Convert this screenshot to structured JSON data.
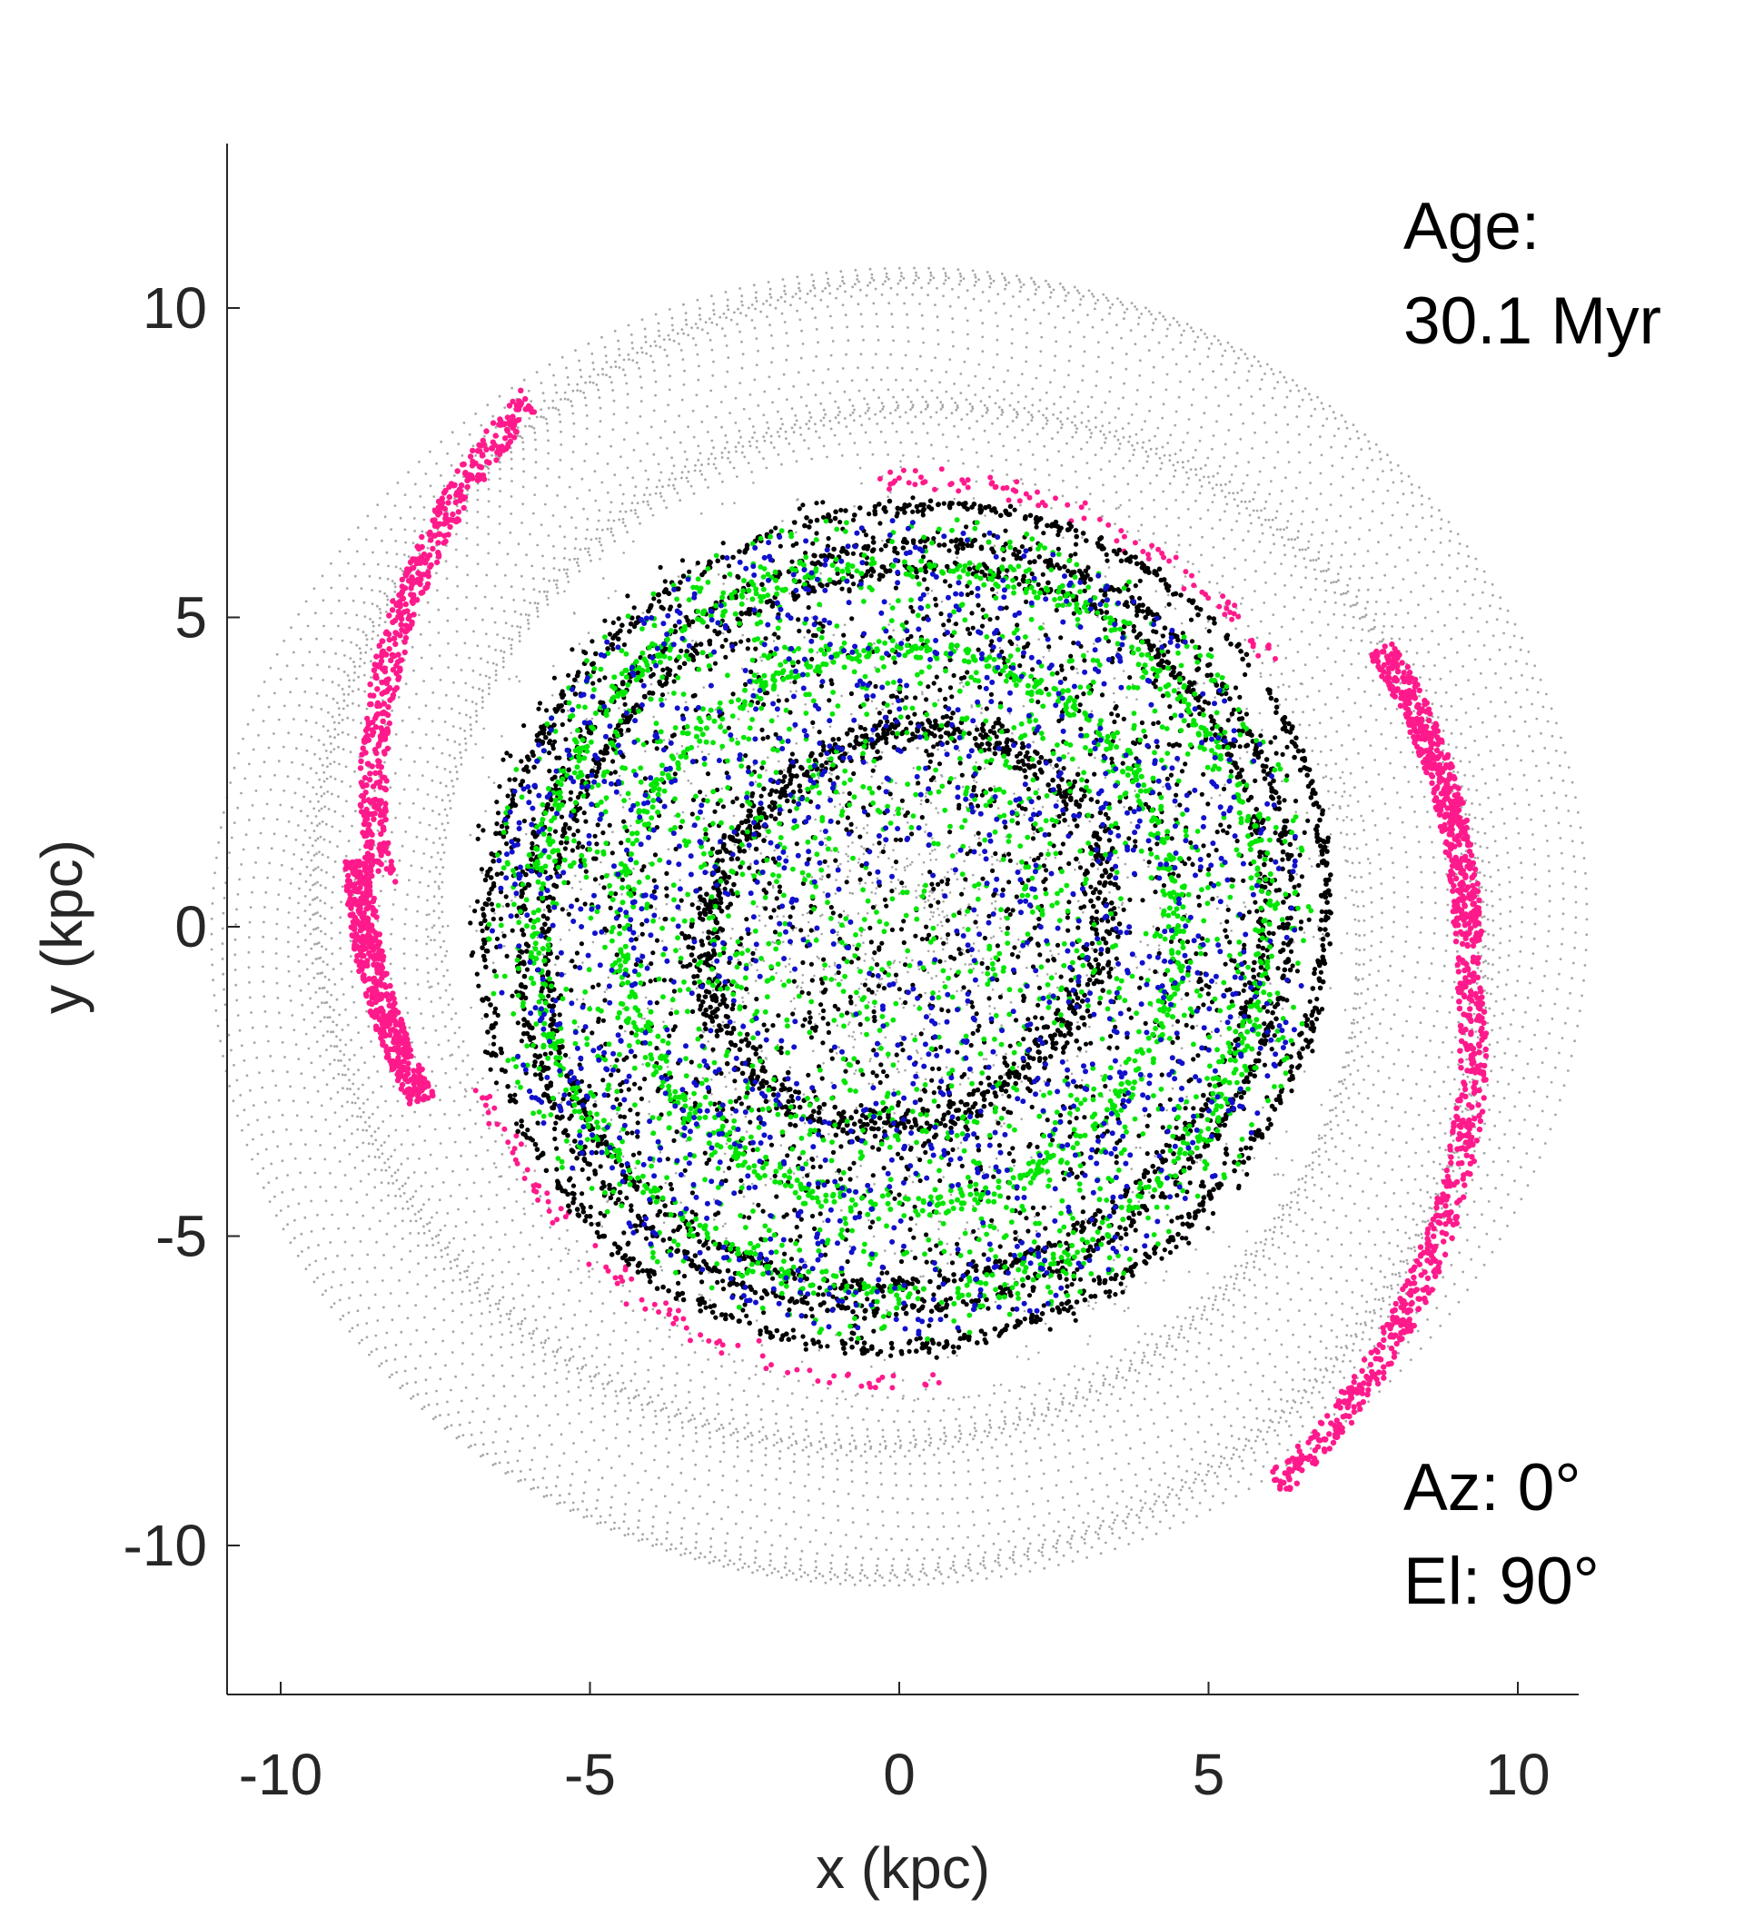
{
  "chart_data": {
    "type": "scatter",
    "title": "",
    "xlabel": "x (kpc)",
    "ylabel": "y (kpc)",
    "xlim": [
      -11,
      11
    ],
    "ylim": [
      -12.5,
      12.7
    ],
    "xticks": [
      -10,
      -5,
      0,
      5,
      10
    ],
    "yticks": [
      -10,
      -5,
      0,
      5,
      10
    ],
    "xtick_labels": [
      "-10",
      "-5",
      "0",
      "5",
      "10"
    ],
    "ytick_labels": [
      "-10",
      "-5",
      "0",
      "5",
      "10"
    ],
    "grid": false,
    "legend": "none",
    "annotations": {
      "age_label": "Age:",
      "age_value": "30.1 Myr",
      "azimuth": "Az: 0°",
      "elevation": "El: 90°"
    },
    "colors": {
      "gas_background": "#a6a6a6",
      "black_population": "#000000",
      "green_population": "#00e600",
      "blue_population": "#1010cc",
      "magenta_population": "#ff1a8c",
      "axis": "#262626"
    },
    "series": [
      {
        "color": "#a6a6a6",
        "description_key": "gray",
        "pattern": "rings",
        "r_range": [
          7.5,
          10.9
        ],
        "note_values": "dense concentric rings of small gray points filling the outer disk"
      },
      {
        "color": "#ff1a8c",
        "description_key": "magenta",
        "pattern": "spiral-arcs",
        "arcs": [
          {
            "r": [
              10.4,
              8.4
            ],
            "theta_deg": [
              125,
              175
            ]
          },
          {
            "r": [
              8.8,
              8.2
            ],
            "theta_deg": [
              173,
              200
            ]
          },
          {
            "r": [
              9.0,
              9.2
            ],
            "theta_deg": [
              30,
              -2
            ]
          },
          {
            "r": [
              9.2,
              10.9
            ],
            "theta_deg": [
              -3,
              -56
            ]
          },
          {
            "r": [
              7.2,
              7.4
            ],
            "theta_deg": [
              95,
              35
            ]
          },
          {
            "r": [
              7.2,
              7.4
            ],
            "theta_deg": [
              200,
              275
            ]
          }
        ]
      },
      {
        "color": "#000000",
        "description_key": "black",
        "pattern": "rings-and-scatter",
        "ring_radii": [
          6.8,
          6.2,
          5.8,
          3.2
        ],
        "r_range": [
          0.0,
          7.2
        ]
      },
      {
        "color": "#00e600",
        "description_key": "green",
        "pattern": "rings-and-scatter",
        "ring_radii": [
          5.9,
          4.5
        ],
        "r_range": [
          0.0,
          6.8
        ]
      },
      {
        "color": "#1010cc",
        "description_key": "blue",
        "pattern": "scatter",
        "r_range": [
          0.5,
          6.6
        ]
      }
    ]
  }
}
